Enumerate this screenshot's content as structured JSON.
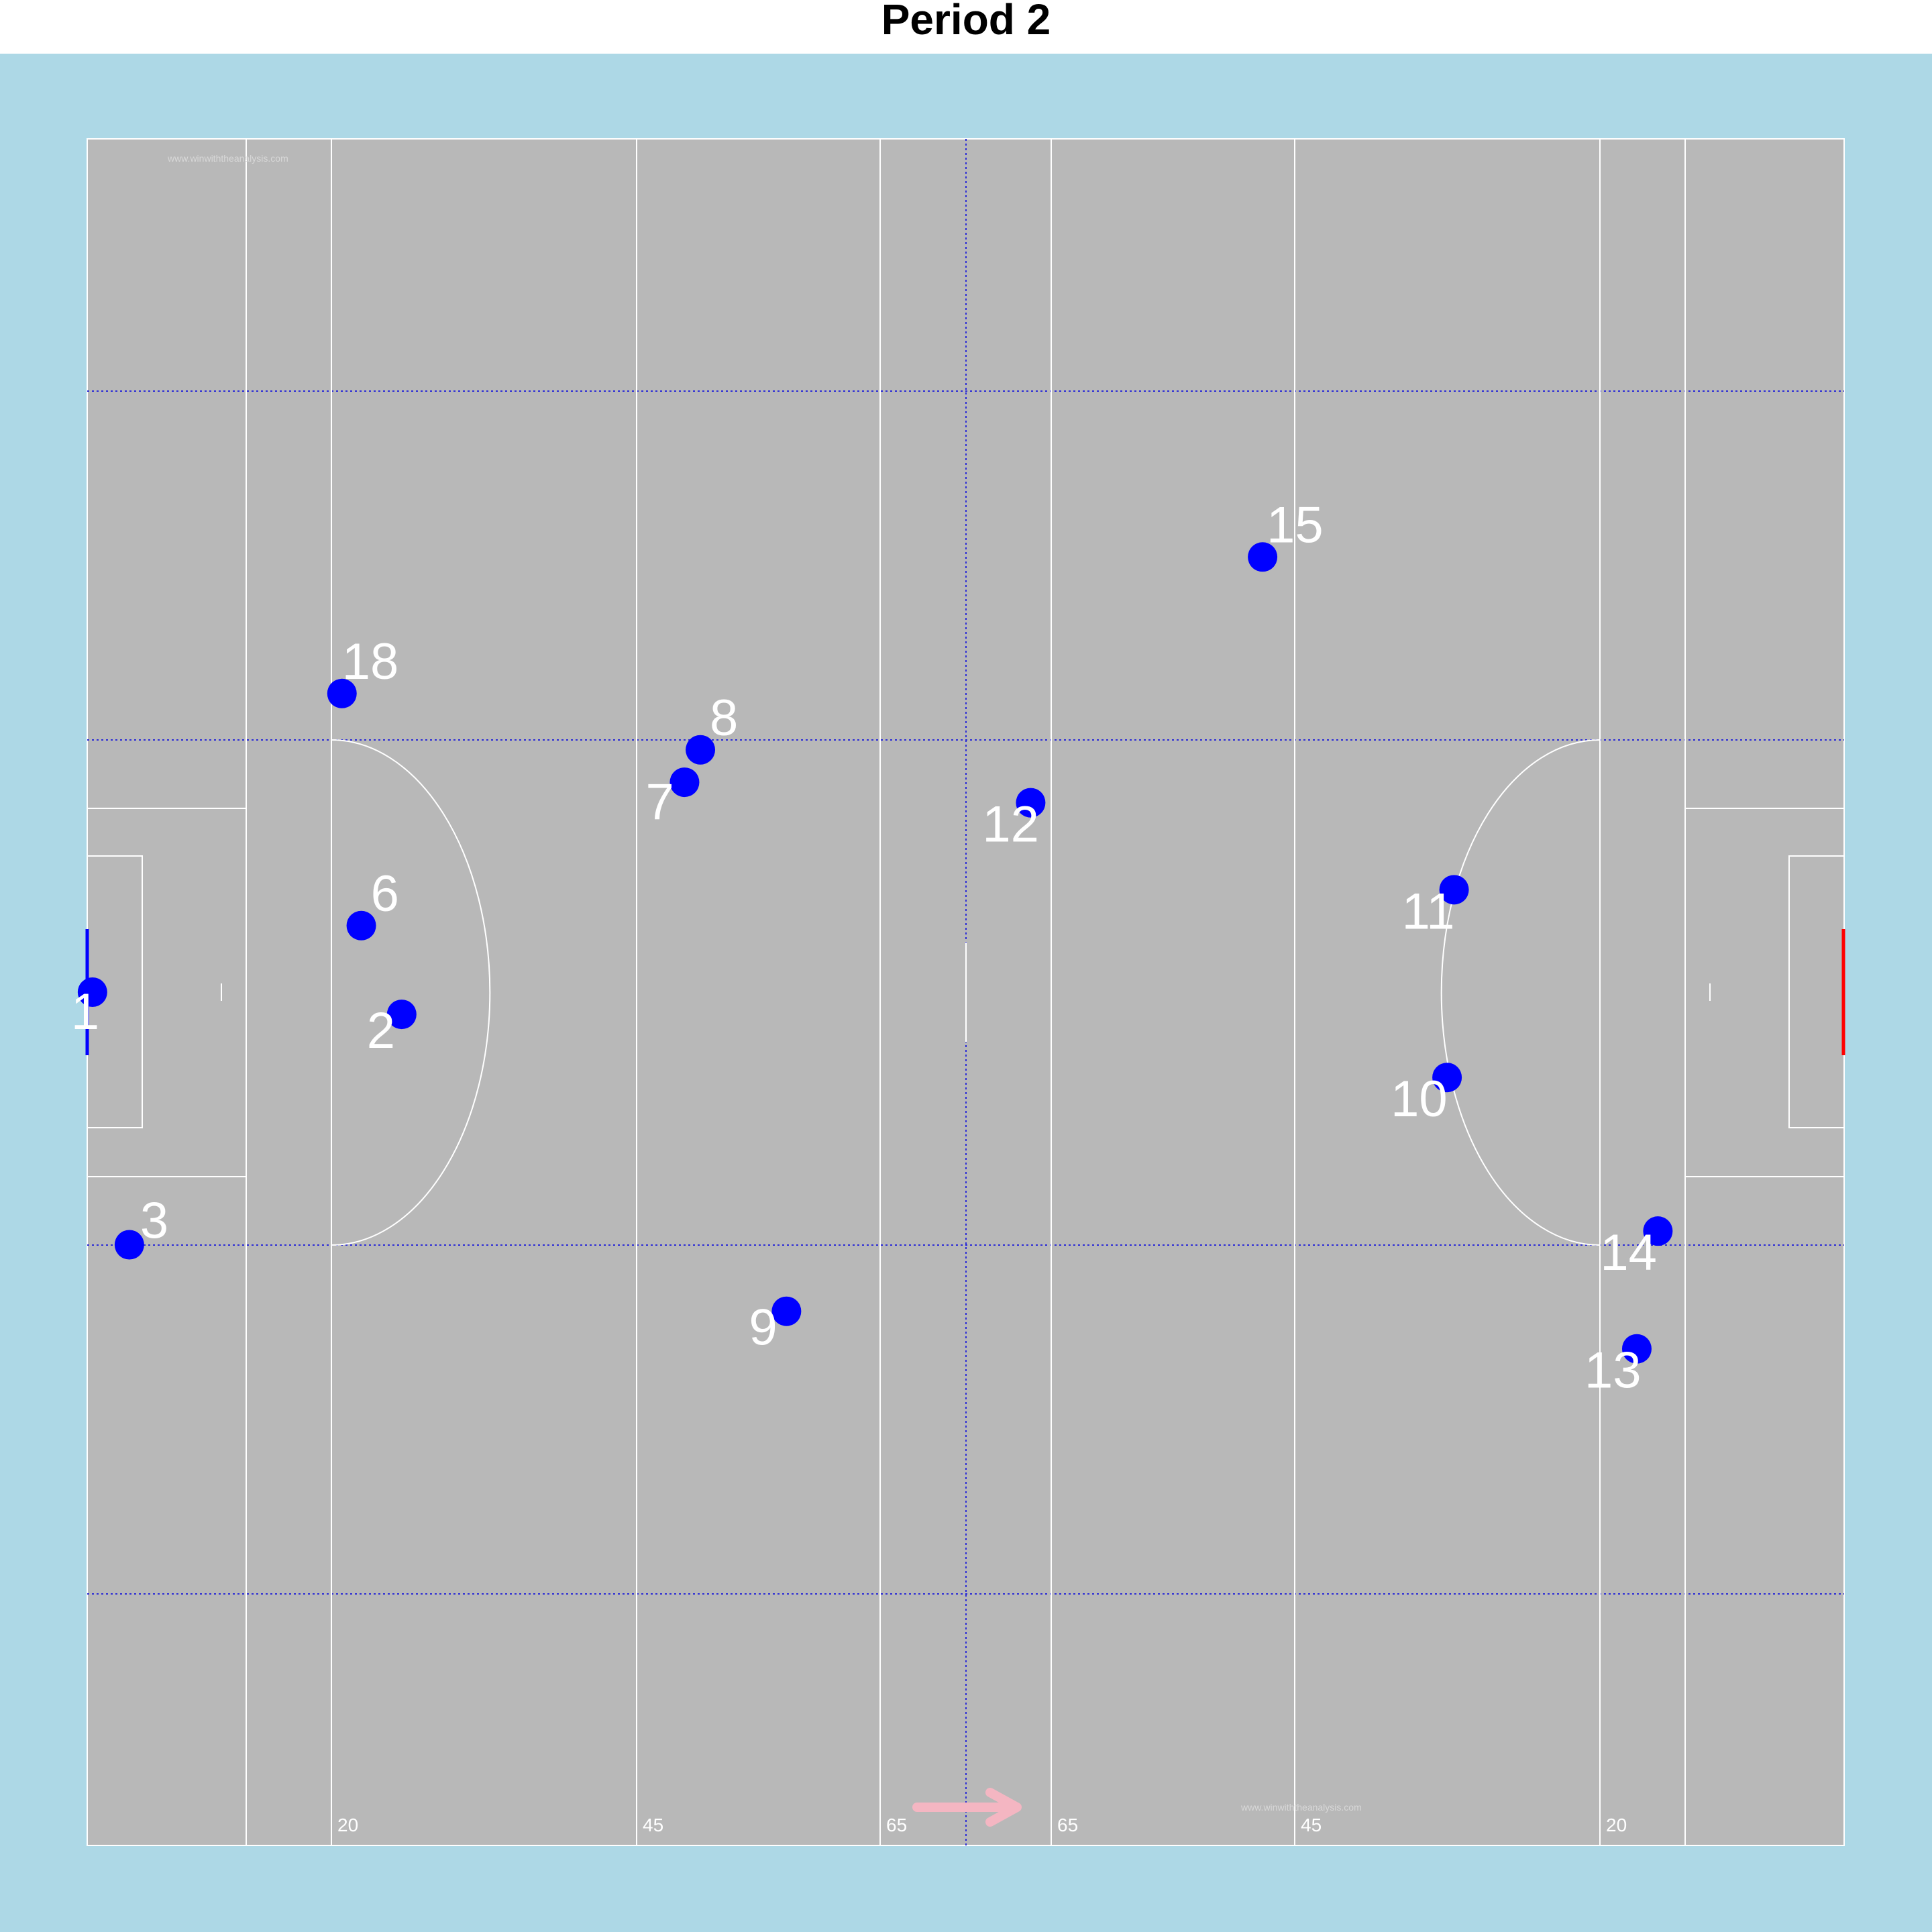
{
  "title": "Period 2",
  "colors": {
    "outer_background": "#add8e6",
    "pitch": "#b8b8b8",
    "lines": "#ffffff",
    "grid": "#2b2bd6",
    "player": "#0000ff",
    "own_goal": "#0000ff",
    "opposition_goal": "#ff0000",
    "direction_arrow": "#f4b6c2"
  },
  "pitch_lines": {
    "left": [
      "20",
      "45",
      "65"
    ],
    "right": [
      "65",
      "45",
      "20"
    ]
  },
  "watermark": "www.winwiththeanalysis.com",
  "attack_direction": "right",
  "players": [
    {
      "number": "1",
      "x": 0.3,
      "y": 50.0
    },
    {
      "number": "2",
      "x": 17.9,
      "y": 48.7
    },
    {
      "number": "3",
      "x": 2.4,
      "y": 35.2
    },
    {
      "number": "6",
      "x": 15.6,
      "y": 53.9
    },
    {
      "number": "7",
      "x": 34.0,
      "y": 62.3
    },
    {
      "number": "8",
      "x": 34.9,
      "y": 64.2
    },
    {
      "number": "9",
      "x": 39.8,
      "y": 31.3
    },
    {
      "number": "10",
      "x": 77.4,
      "y": 45.0
    },
    {
      "number": "11",
      "x": 77.8,
      "y": 56.0
    },
    {
      "number": "12",
      "x": 53.7,
      "y": 61.1
    },
    {
      "number": "13",
      "x": 88.2,
      "y": 29.1
    },
    {
      "number": "14",
      "x": 89.4,
      "y": 36.0
    },
    {
      "number": "15",
      "x": 66.9,
      "y": 75.5
    },
    {
      "number": "18",
      "x": 14.5,
      "y": 67.5
    }
  ]
}
